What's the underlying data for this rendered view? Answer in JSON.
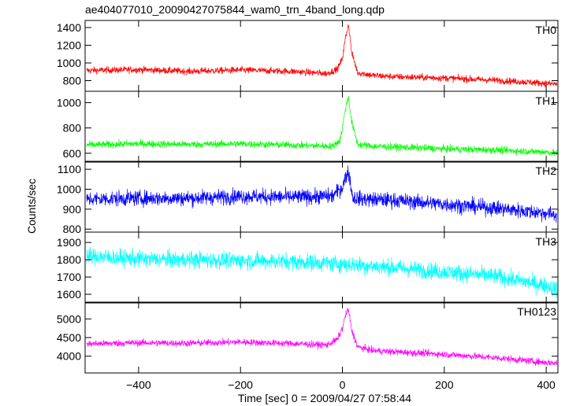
{
  "title": "ae404077010_20090427075844_wam0_trn_4band_long.qdp",
  "xlabel": "Time [sec] 0 = 2009/04/27 07:58:44",
  "ylabel": "Counts/sec",
  "chart_data": {
    "type": "line",
    "title": "ae404077010_20090427075844_wam0_trn_4band_long.qdp",
    "xlabel": "Time [sec] 0 = 2009/04/27 07:58:44",
    "ylabel": "Counts/sec",
    "xlim": [
      -505,
      423
    ],
    "x_ticks": [
      -400,
      -200,
      0,
      200,
      400
    ],
    "x_tick_labels": [
      "−400",
      "−200",
      "0",
      "200",
      "400"
    ],
    "grid": false,
    "panels": [
      {
        "name": "TH0",
        "color": "#ff0000",
        "ylim": [
          680,
          1480
        ],
        "ticks": [
          800,
          1000,
          1200,
          1400
        ],
        "noise": 38,
        "x": [
          -500,
          -400,
          -300,
          -200,
          -100,
          -30,
          -10,
          0,
          6,
          12,
          18,
          30,
          60,
          100,
          200,
          300,
          400,
          420
        ],
        "baseline": [
          915,
          925,
          905,
          920,
          905,
          880,
          930,
          1050,
          1280,
          1440,
          1120,
          890,
          860,
          845,
          830,
          805,
          770,
          760
        ]
      },
      {
        "name": "TH1",
        "color": "#00ff00",
        "ylim": [
          530,
          1090
        ],
        "ticks": [
          600,
          800,
          1000
        ],
        "noise": 28,
        "x": [
          -500,
          -400,
          -300,
          -200,
          -100,
          -20,
          -5,
          0,
          6,
          12,
          18,
          30,
          60,
          100,
          200,
          300,
          400,
          420
        ],
        "baseline": [
          665,
          675,
          670,
          675,
          665,
          655,
          700,
          800,
          950,
          1050,
          850,
          670,
          655,
          650,
          635,
          625,
          610,
          600
        ]
      },
      {
        "name": "TH2",
        "color": "#0000ff",
        "ylim": [
          785,
          1140
        ],
        "ticks": [
          800,
          900,
          1000,
          1100
        ],
        "noise": 38,
        "x": [
          -500,
          -400,
          -300,
          -200,
          -100,
          -20,
          0,
          6,
          12,
          20,
          40,
          100,
          200,
          300,
          400,
          420
        ],
        "baseline": [
          950,
          955,
          955,
          965,
          960,
          965,
          1010,
          1060,
          1090,
          960,
          950,
          945,
          925,
          905,
          880,
          870
        ]
      },
      {
        "name": "TH3",
        "color": "#00ffff",
        "ylim": [
          1550,
          1960
        ],
        "ticks": [
          1600,
          1700,
          1800,
          1900
        ],
        "noise": 48,
        "x": [
          -500,
          -400,
          -300,
          -200,
          -100,
          0,
          100,
          200,
          300,
          400,
          420
        ],
        "baseline": [
          1820,
          1805,
          1800,
          1795,
          1790,
          1775,
          1755,
          1730,
          1705,
          1650,
          1630
        ]
      },
      {
        "name": "TH0123",
        "color": "#ff00ff",
        "ylim": [
          3550,
          5450
        ],
        "ticks": [
          4000,
          4500,
          5000
        ],
        "noise": 90,
        "x": [
          -500,
          -400,
          -300,
          -200,
          -100,
          -30,
          -10,
          0,
          6,
          12,
          18,
          30,
          60,
          100,
          200,
          300,
          400,
          420
        ],
        "baseline": [
          4330,
          4360,
          4350,
          4380,
          4340,
          4300,
          4450,
          4750,
          5100,
          5250,
          4700,
          4250,
          4150,
          4120,
          4050,
          3960,
          3830,
          3820
        ]
      }
    ]
  }
}
